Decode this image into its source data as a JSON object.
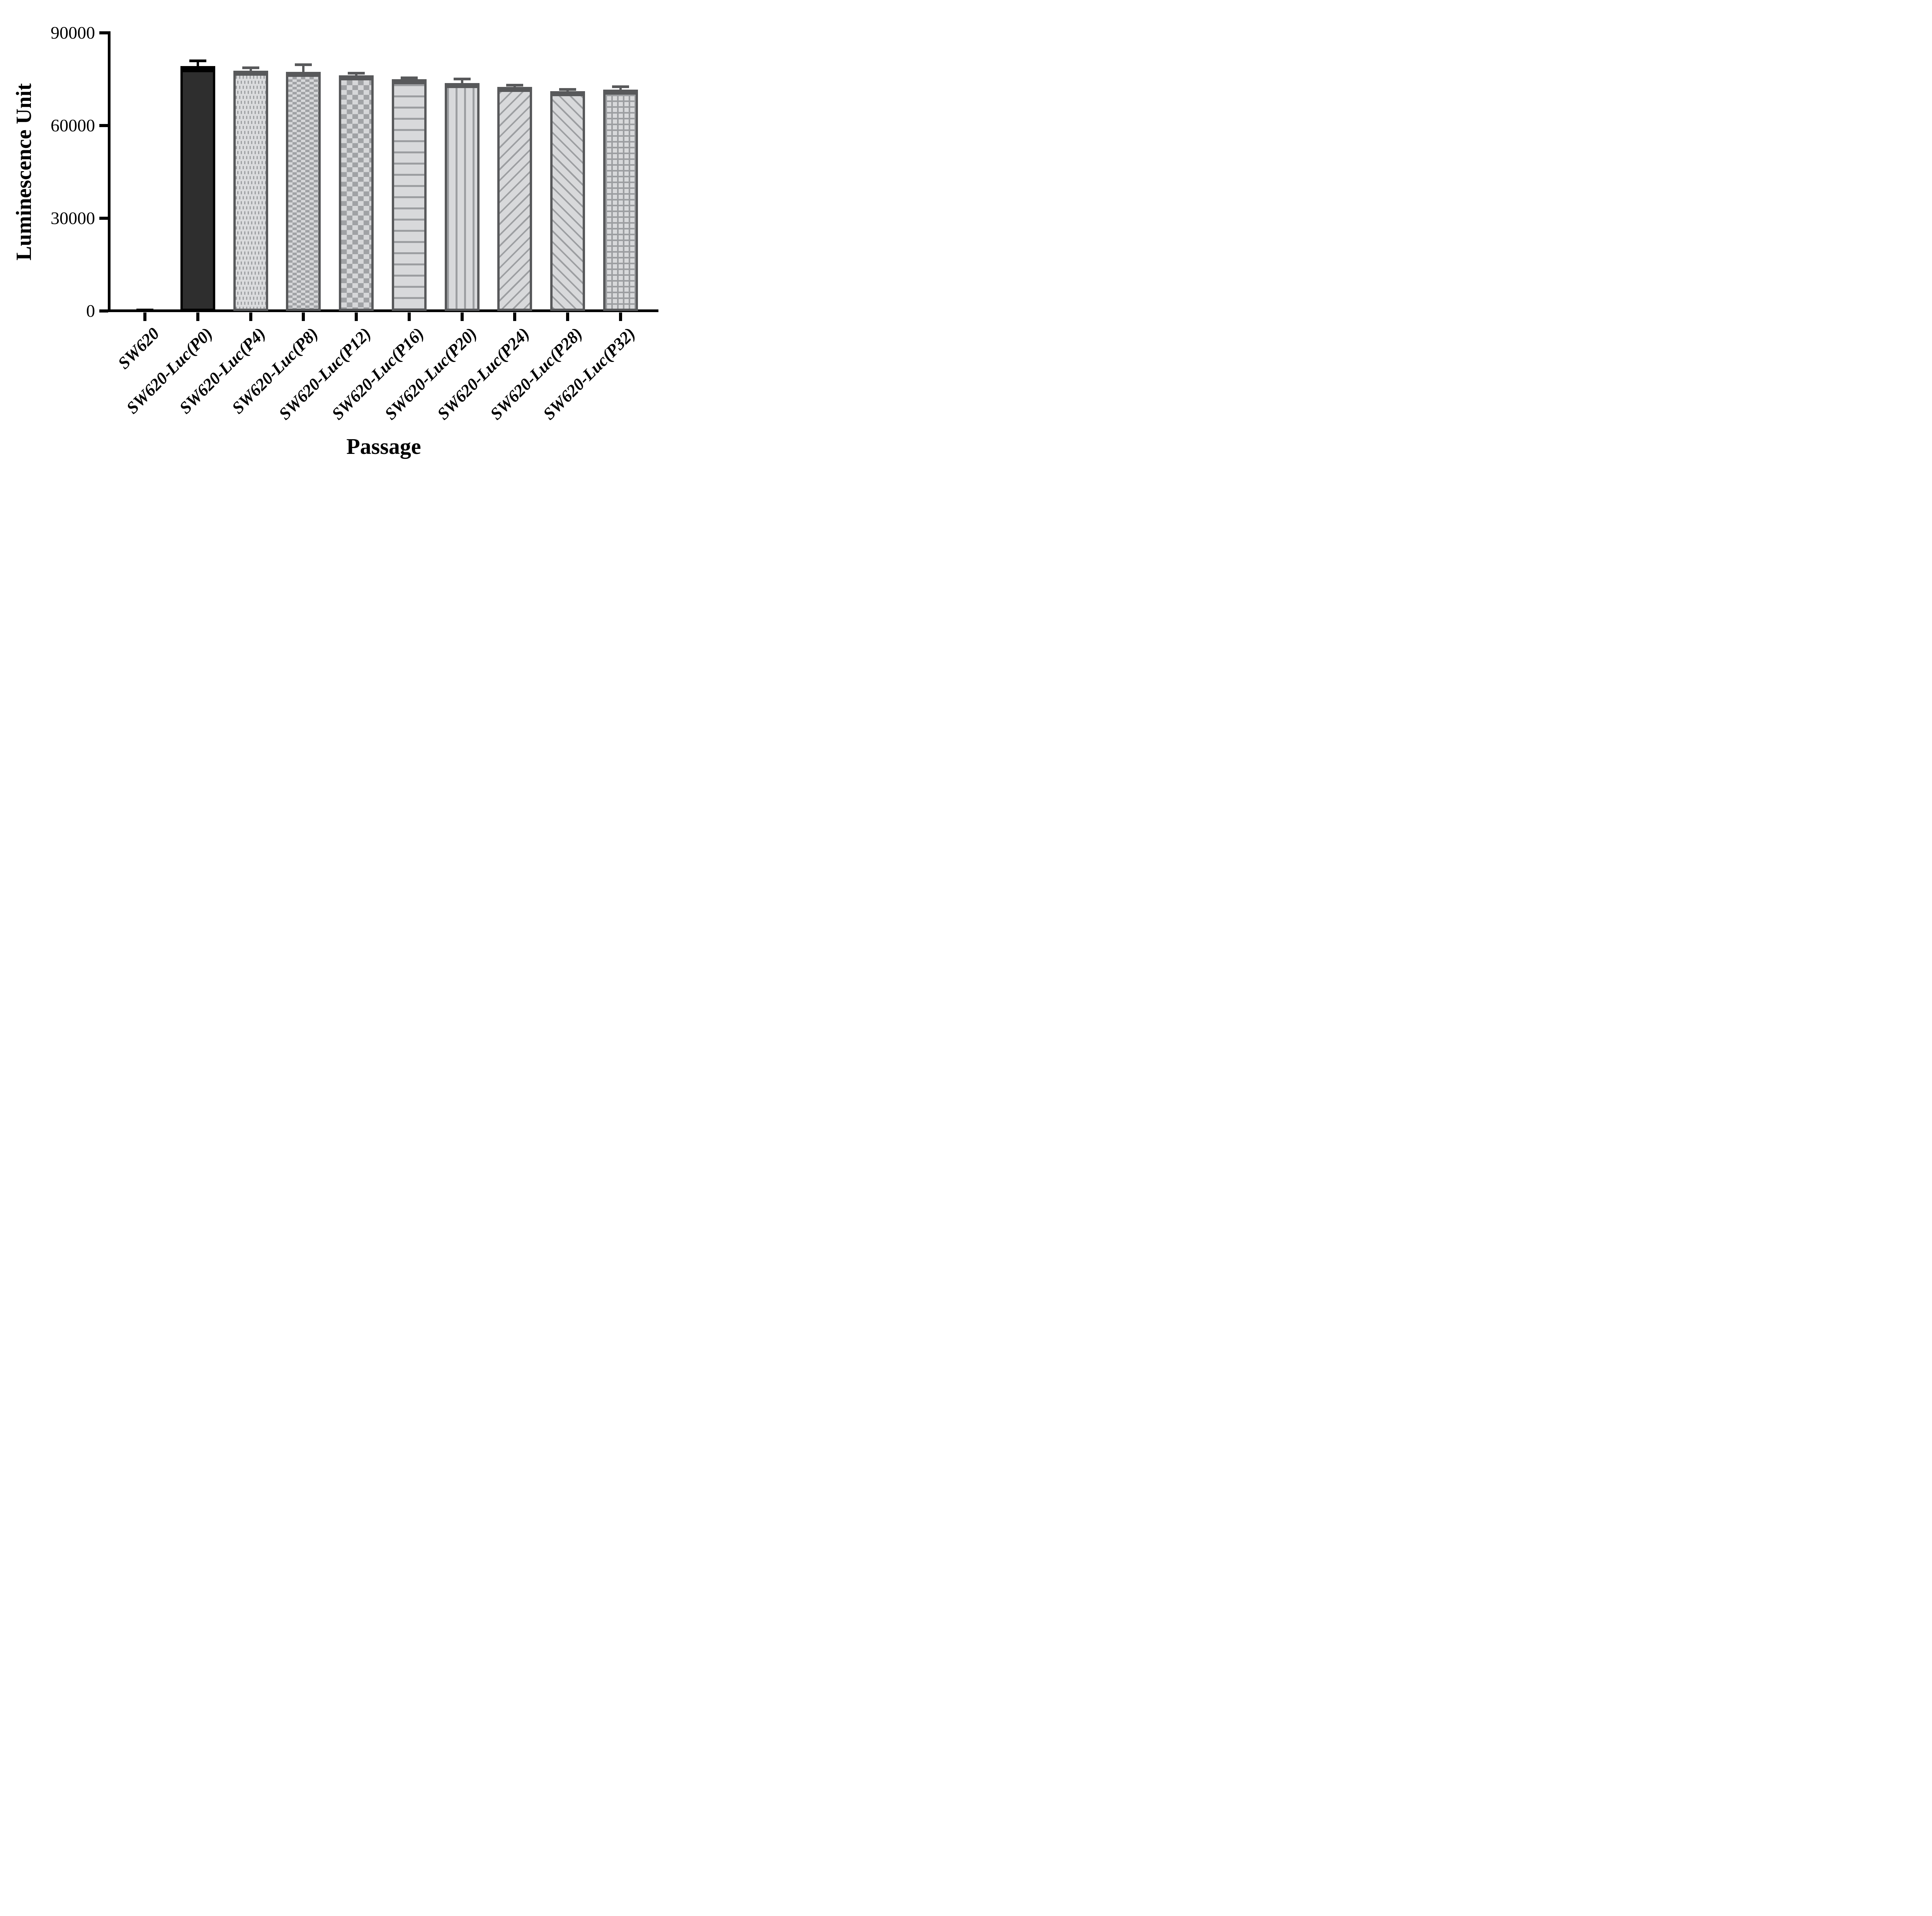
{
  "figure": {
    "kind": "bar chart",
    "background": "#ffffff"
  },
  "chart_data": {
    "type": "bar",
    "title": "",
    "xlabel": "Passage",
    "ylabel": "Luminescence Unit",
    "categories": [
      "SW620",
      "SW620-Luc(P0)",
      "SW620-Luc(P4)",
      "SW620-Luc(P8)",
      "SW620-Luc(P12)",
      "SW620-Luc(P16)",
      "SW620-Luc(P20)",
      "SW620-Luc(P24)",
      "SW620-Luc(P28)",
      "SW620-Luc(P32)"
    ],
    "values": [
      200,
      79200,
      77800,
      77400,
      76200,
      75000,
      73700,
      72500,
      71100,
      71600
    ],
    "errors": [
      150,
      1800,
      900,
      2300,
      800,
      500,
      1400,
      600,
      700,
      1000
    ],
    "error_type": "upper whisker with cap",
    "ylim": [
      0,
      90000
    ],
    "yticks": [
      0,
      30000,
      60000,
      90000
    ],
    "bar_patterns": [
      "solid-black",
      "solid-black",
      "dots",
      "checker-fine",
      "checker",
      "hlines",
      "vlines",
      "diag-up",
      "diag-down",
      "grid"
    ],
    "legend": "none",
    "grid": "off"
  },
  "style": {
    "bar_border_color": "#58595B",
    "black_bar_fill": "#2E2E2E",
    "black_bar_border": "#000000",
    "pattern_color": "#9C9EA1",
    "pattern_background": "#D8D9DB",
    "axis_color": "#000000",
    "text_color": "#000000"
  }
}
